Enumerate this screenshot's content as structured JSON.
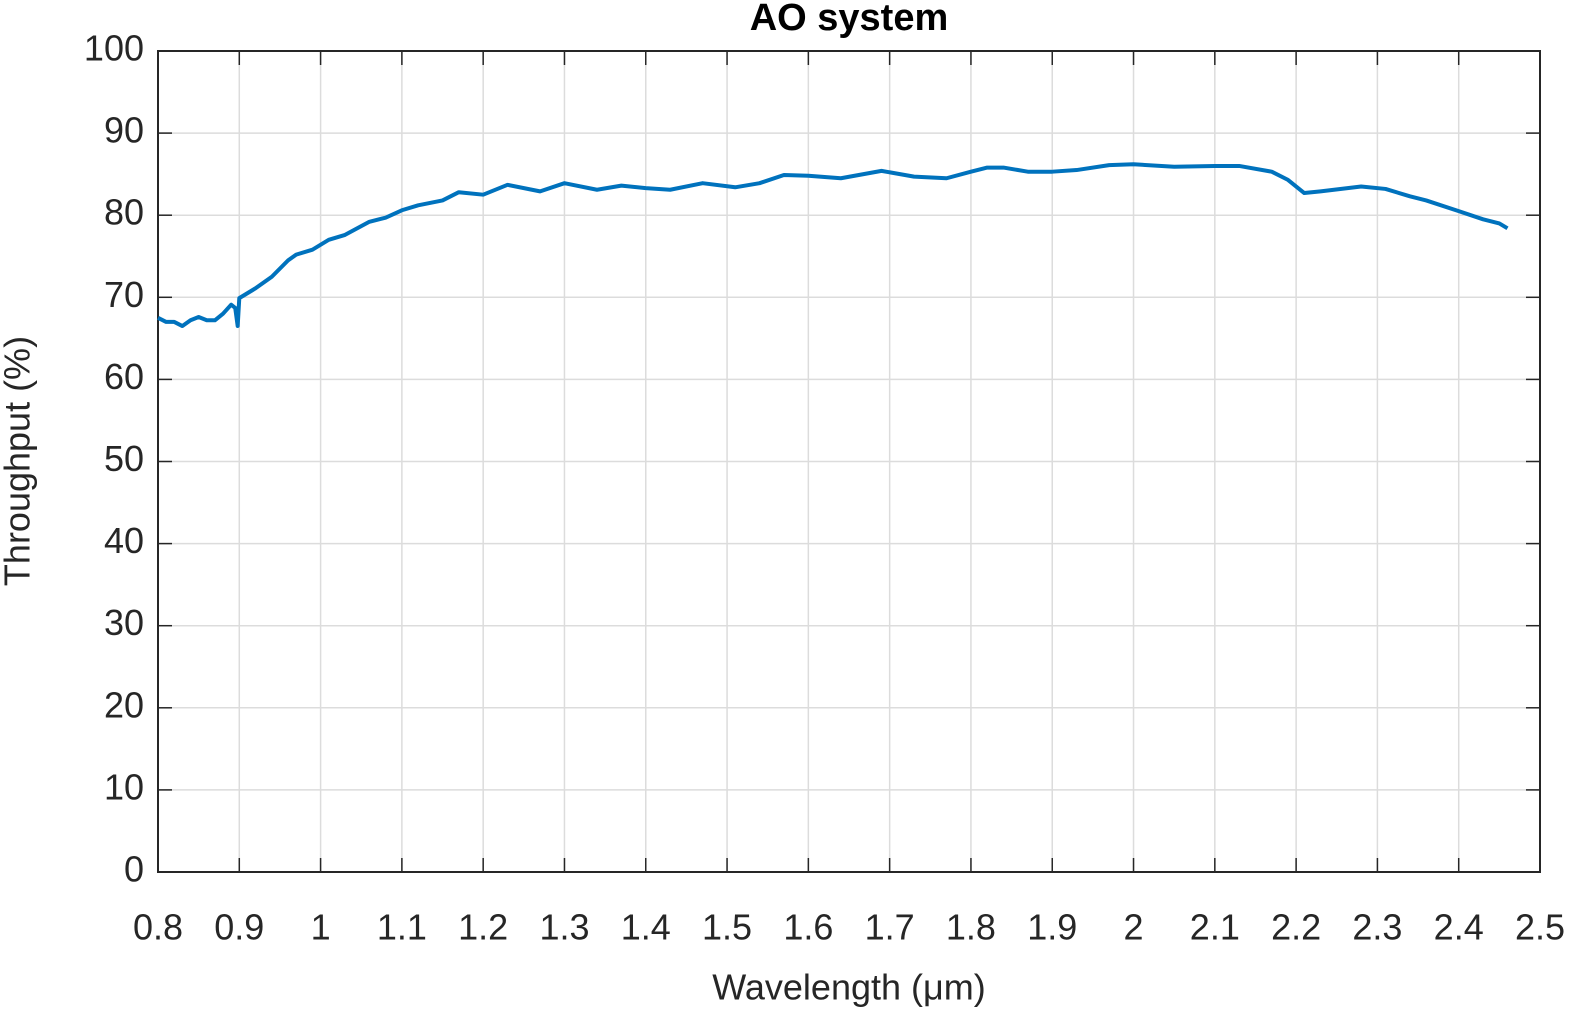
{
  "chart_data": {
    "type": "line",
    "title": "AO system",
    "x_label": "Wavelength (μm)",
    "y_label": "Throughput (%)",
    "x": [
      0.8,
      0.81,
      0.82,
      0.83,
      0.84,
      0.85,
      0.86,
      0.87,
      0.88,
      0.89,
      0.895,
      0.898,
      0.9,
      0.92,
      0.94,
      0.96,
      0.97,
      0.99,
      1.01,
      1.03,
      1.06,
      1.08,
      1.1,
      1.12,
      1.15,
      1.17,
      1.2,
      1.23,
      1.27,
      1.3,
      1.34,
      1.37,
      1.4,
      1.43,
      1.47,
      1.51,
      1.54,
      1.57,
      1.6,
      1.64,
      1.69,
      1.73,
      1.77,
      1.8,
      1.82,
      1.84,
      1.87,
      1.9,
      1.93,
      1.97,
      2.0,
      2.05,
      2.1,
      2.13,
      2.17,
      2.19,
      2.21,
      2.23,
      2.28,
      2.31,
      2.34,
      2.36,
      2.4,
      2.43,
      2.45,
      2.46
    ],
    "values": [
      67.5,
      67.0,
      67.0,
      66.5,
      67.2,
      67.6,
      67.2,
      67.2,
      68.0,
      69.1,
      68.7,
      66.5,
      69.9,
      71.1,
      72.5,
      74.5,
      75.2,
      75.8,
      77.0,
      77.6,
      79.2,
      79.7,
      80.6,
      81.2,
      81.8,
      82.8,
      82.5,
      83.7,
      82.9,
      83.9,
      83.1,
      83.6,
      83.3,
      83.1,
      83.9,
      83.4,
      83.9,
      84.9,
      84.8,
      84.5,
      85.4,
      84.7,
      84.5,
      85.3,
      85.8,
      85.8,
      85.3,
      85.3,
      85.5,
      86.1,
      86.2,
      85.9,
      86.0,
      86.0,
      85.3,
      84.3,
      82.7,
      82.9,
      83.5,
      83.2,
      82.3,
      81.8,
      80.5,
      79.5,
      79.0,
      78.4
    ],
    "color": "#0072bd",
    "xlim": [
      0.8,
      2.5
    ],
    "xticks": [
      0.8,
      0.9,
      1,
      1.1,
      1.2,
      1.3,
      1.4,
      1.5,
      1.6,
      1.7,
      1.8,
      1.9,
      2,
      2.1,
      2.2,
      2.3,
      2.4,
      2.5
    ],
    "ylim": [
      0,
      100
    ],
    "yticks": [
      0,
      10,
      20,
      30,
      40,
      50,
      60,
      70,
      80,
      90,
      100
    ],
    "grid": true
  }
}
